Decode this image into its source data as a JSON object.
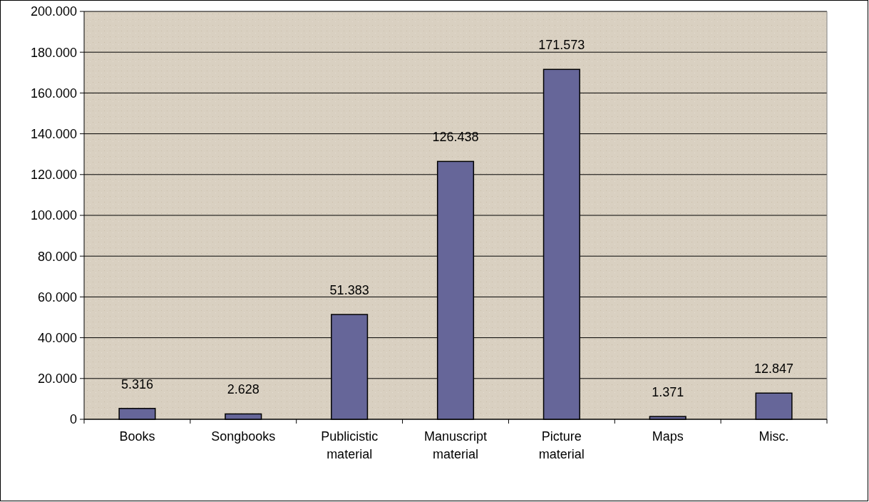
{
  "chart_data": {
    "type": "bar",
    "categories": [
      "Books",
      "Songbooks",
      "Publicistic material",
      "Manuscript material",
      "Picture material",
      "Maps",
      "Misc."
    ],
    "values": [
      5316,
      2628,
      51383,
      126438,
      171573,
      1371,
      12847
    ],
    "value_labels": [
      "5.316",
      "2.628",
      "51.383",
      "126.438",
      "171.573",
      "1.371",
      "12.847"
    ],
    "color": "#666699",
    "ylim": [
      0,
      200000
    ],
    "yticks": [
      0,
      {
        "value": 20000,
        "label": "20.000"
      },
      {
        "value": 40000,
        "label": "40.000"
      },
      {
        "value": 60000,
        "label": "60.000"
      },
      {
        "value": 80000,
        "label": "80.000"
      },
      {
        "value": 100000,
        "label": "100.000"
      },
      {
        "value": 120000,
        "label": "120.000"
      },
      {
        "value": 140000,
        "label": "140.000"
      },
      {
        "value": 160000,
        "label": "160.000"
      },
      {
        "value": 180000,
        "label": "180.000"
      },
      {
        "value": 200000,
        "label": "200.000"
      }
    ],
    "grid": "y"
  }
}
